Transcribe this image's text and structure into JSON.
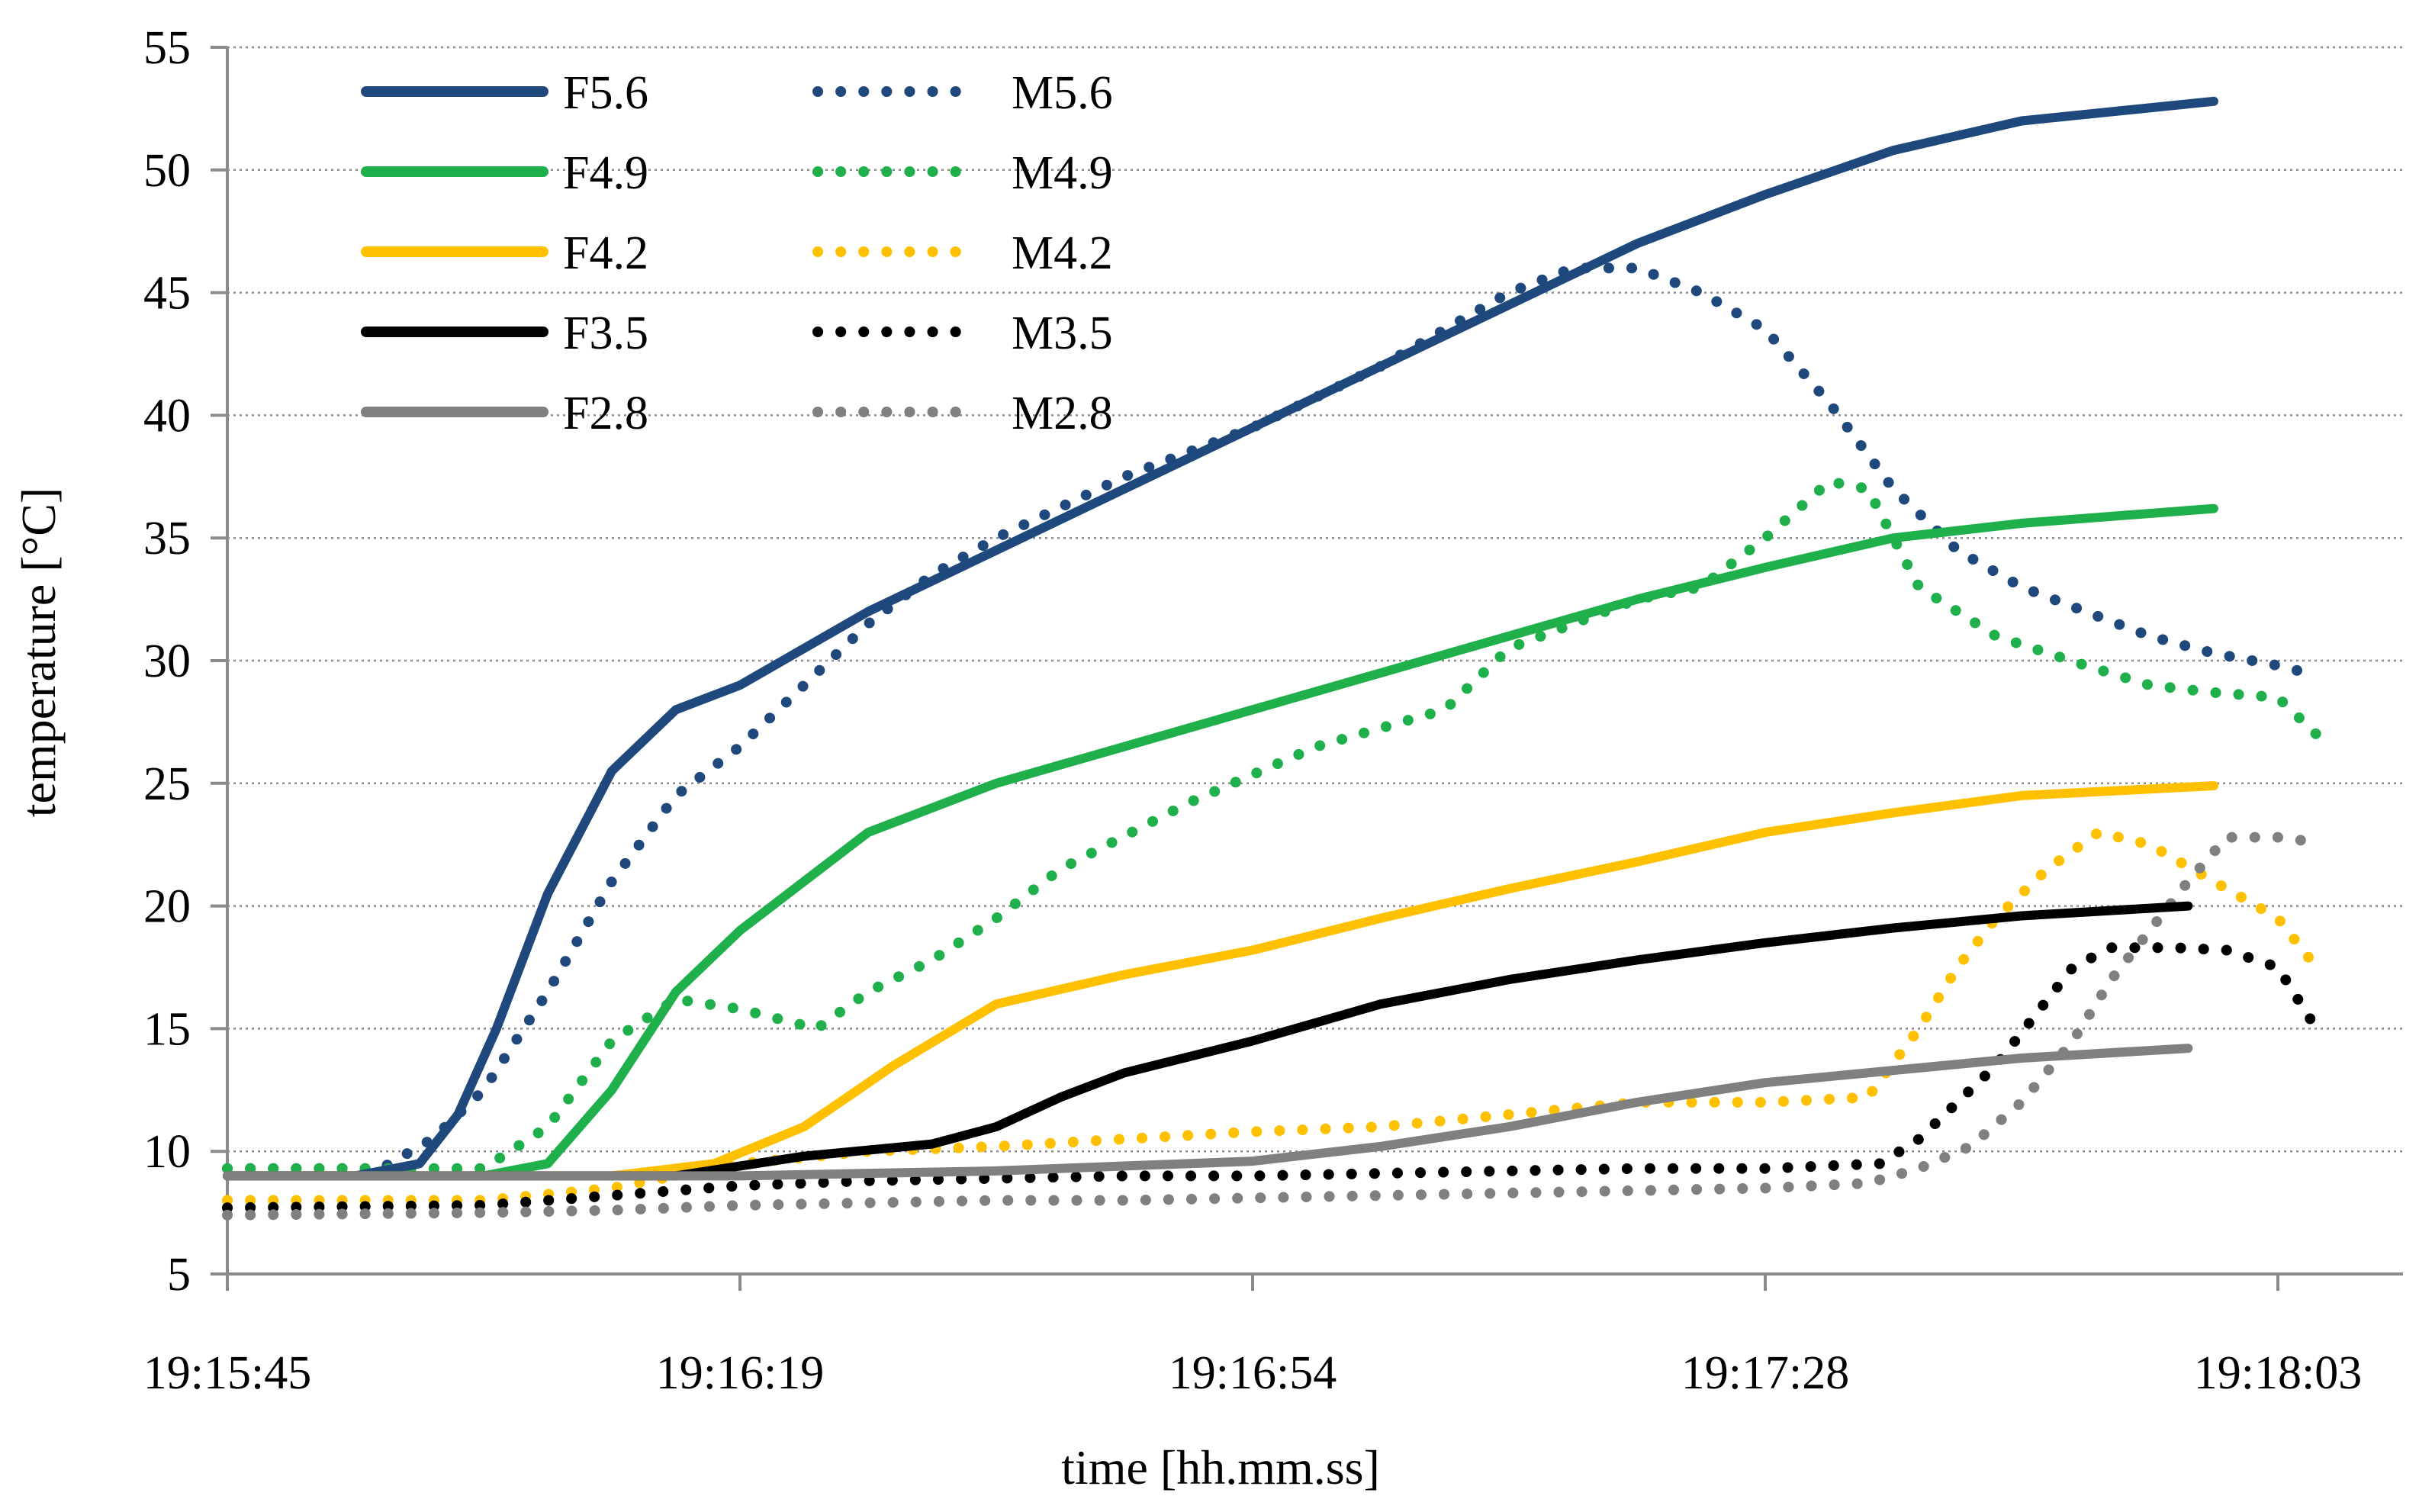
{
  "chart_data": {
    "type": "line",
    "xlabel": "time [hh.mm.ss]",
    "ylabel": "temperature [°C]",
    "ylim": [
      5,
      55
    ],
    "yticks": [
      5,
      10,
      15,
      20,
      25,
      30,
      35,
      40,
      45,
      50,
      55
    ],
    "xlim": [
      0,
      165
    ],
    "xticks": [
      {
        "label": "19:15:45",
        "t": 0
      },
      {
        "label": "19:16:19",
        "t": 40
      },
      {
        "label": "19:16:54",
        "t": 80
      },
      {
        "label": "19:17:28",
        "t": 120
      },
      {
        "label": "19:18:03",
        "t": 160
      }
    ],
    "grid": "horizontal-dotted",
    "legend_position": "top-left",
    "series": [
      {
        "name": "F5.6",
        "color": "#1f497d",
        "style": "solid",
        "points": [
          [
            0,
            9
          ],
          [
            10,
            9
          ],
          [
            15,
            9.5
          ],
          [
            18,
            11.5
          ],
          [
            21,
            15
          ],
          [
            25,
            20.5
          ],
          [
            30,
            25.5
          ],
          [
            35,
            28
          ],
          [
            40,
            29
          ],
          [
            45,
            30.5
          ],
          [
            50,
            32
          ],
          [
            60,
            34.5
          ],
          [
            70,
            37
          ],
          [
            80,
            39.5
          ],
          [
            90,
            42
          ],
          [
            100,
            44.5
          ],
          [
            110,
            47
          ],
          [
            120,
            49
          ],
          [
            130,
            50.8
          ],
          [
            140,
            52
          ],
          [
            155,
            52.8
          ]
        ]
      },
      {
        "name": "F4.9",
        "color": "#1fb04b",
        "style": "solid",
        "points": [
          [
            0,
            9
          ],
          [
            20,
            9
          ],
          [
            25,
            9.5
          ],
          [
            30,
            12.5
          ],
          [
            35,
            16.5
          ],
          [
            40,
            19
          ],
          [
            45,
            21
          ],
          [
            50,
            23
          ],
          [
            60,
            25
          ],
          [
            70,
            26.5
          ],
          [
            80,
            28
          ],
          [
            90,
            29.5
          ],
          [
            100,
            31
          ],
          [
            110,
            32.5
          ],
          [
            120,
            33.8
          ],
          [
            130,
            35
          ],
          [
            140,
            35.6
          ],
          [
            155,
            36.2
          ]
        ]
      },
      {
        "name": "F4.2",
        "color": "#ffc000",
        "style": "solid",
        "points": [
          [
            0,
            9
          ],
          [
            30,
            9
          ],
          [
            38,
            9.5
          ],
          [
            45,
            11
          ],
          [
            52,
            13.5
          ],
          [
            60,
            16
          ],
          [
            70,
            17.2
          ],
          [
            80,
            18.2
          ],
          [
            90,
            19.5
          ],
          [
            100,
            20.7
          ],
          [
            110,
            21.8
          ],
          [
            120,
            23
          ],
          [
            130,
            23.8
          ],
          [
            140,
            24.5
          ],
          [
            155,
            24.9
          ]
        ]
      },
      {
        "name": "F3.5",
        "color": "#000000",
        "style": "solid",
        "points": [
          [
            0,
            9
          ],
          [
            35,
            9
          ],
          [
            45,
            9.8
          ],
          [
            55,
            10.3
          ],
          [
            60,
            11
          ],
          [
            65,
            12.2
          ],
          [
            70,
            13.2
          ],
          [
            80,
            14.5
          ],
          [
            90,
            16
          ],
          [
            100,
            17
          ],
          [
            110,
            17.8
          ],
          [
            120,
            18.5
          ],
          [
            130,
            19.1
          ],
          [
            140,
            19.6
          ],
          [
            153,
            20
          ]
        ]
      },
      {
        "name": "F2.8",
        "color": "#808080",
        "style": "solid",
        "points": [
          [
            0,
            9
          ],
          [
            40,
            9
          ],
          [
            60,
            9.2
          ],
          [
            80,
            9.6
          ],
          [
            90,
            10.2
          ],
          [
            100,
            11
          ],
          [
            110,
            12
          ],
          [
            120,
            12.8
          ],
          [
            130,
            13.3
          ],
          [
            140,
            13.8
          ],
          [
            153,
            14.2
          ]
        ]
      },
      {
        "name": "M5.6",
        "color": "#1f497d",
        "style": "dotted",
        "points": [
          [
            0,
            9.3
          ],
          [
            12,
            9.3
          ],
          [
            16,
            10.5
          ],
          [
            20,
            12.5
          ],
          [
            25,
            16.5
          ],
          [
            30,
            21
          ],
          [
            35,
            24.5
          ],
          [
            40,
            26.5
          ],
          [
            45,
            29
          ],
          [
            50,
            31.5
          ],
          [
            55,
            33.5
          ],
          [
            60,
            35
          ],
          [
            70,
            37.5
          ],
          [
            80,
            39.5
          ],
          [
            90,
            42
          ],
          [
            100,
            45
          ],
          [
            105,
            46
          ],
          [
            110,
            46
          ],
          [
            115,
            45
          ],
          [
            120,
            43.5
          ],
          [
            125,
            40.5
          ],
          [
            130,
            37
          ],
          [
            135,
            34.5
          ],
          [
            140,
            33
          ],
          [
            145,
            32
          ],
          [
            150,
            31
          ],
          [
            155,
            30.3
          ],
          [
            160,
            29.8
          ],
          [
            163,
            29.4
          ]
        ]
      },
      {
        "name": "M4.9",
        "color": "#1fb04b",
        "style": "dotted",
        "points": [
          [
            0,
            9.3
          ],
          [
            20,
            9.3
          ],
          [
            25,
            11
          ],
          [
            30,
            14.5
          ],
          [
            35,
            16.2
          ],
          [
            40,
            15.8
          ],
          [
            46,
            15
          ],
          [
            50,
            16.5
          ],
          [
            55,
            17.8
          ],
          [
            60,
            19.5
          ],
          [
            65,
            21.5
          ],
          [
            75,
            24.2
          ],
          [
            85,
            26.5
          ],
          [
            95,
            28
          ],
          [
            100,
            30.5
          ],
          [
            110,
            32.5
          ],
          [
            115,
            33
          ],
          [
            120,
            35
          ],
          [
            125,
            37.3
          ],
          [
            128,
            37
          ],
          [
            132,
            33
          ],
          [
            138,
            31
          ],
          [
            145,
            29.8
          ],
          [
            150,
            29
          ],
          [
            155,
            28.7
          ],
          [
            160,
            28.5
          ],
          [
            163,
            27
          ]
        ]
      },
      {
        "name": "M4.2",
        "color": "#ffc000",
        "style": "dotted",
        "points": [
          [
            0,
            8
          ],
          [
            20,
            8
          ],
          [
            30,
            8.5
          ],
          [
            40,
            9.5
          ],
          [
            50,
            10
          ],
          [
            60,
            10.2
          ],
          [
            70,
            10.5
          ],
          [
            80,
            10.8
          ],
          [
            90,
            11
          ],
          [
            100,
            11.5
          ],
          [
            110,
            12
          ],
          [
            120,
            12
          ],
          [
            128,
            12.2
          ],
          [
            132,
            15
          ],
          [
            135,
            17.5
          ],
          [
            138,
            19.5
          ],
          [
            142,
            21.5
          ],
          [
            146,
            23
          ],
          [
            150,
            22.5
          ],
          [
            155,
            21
          ],
          [
            160,
            19.5
          ],
          [
            163,
            17.5
          ]
        ]
      },
      {
        "name": "M3.5",
        "color": "#000000",
        "style": "dotted",
        "points": [
          [
            0,
            7.7
          ],
          [
            20,
            7.8
          ],
          [
            30,
            8.2
          ],
          [
            40,
            8.6
          ],
          [
            50,
            8.8
          ],
          [
            60,
            8.9
          ],
          [
            70,
            9
          ],
          [
            80,
            9
          ],
          [
            90,
            9.1
          ],
          [
            100,
            9.2
          ],
          [
            110,
            9.3
          ],
          [
            120,
            9.3
          ],
          [
            129,
            9.5
          ],
          [
            132,
            10.5
          ],
          [
            135,
            12
          ],
          [
            138,
            13.5
          ],
          [
            141,
            15.5
          ],
          [
            144,
            17.5
          ],
          [
            147,
            18.3
          ],
          [
            152,
            18.3
          ],
          [
            156,
            18.2
          ],
          [
            160,
            17.5
          ],
          [
            163,
            15
          ]
        ]
      },
      {
        "name": "M2.8",
        "color": "#808080",
        "style": "dotted",
        "points": [
          [
            0,
            7.4
          ],
          [
            20,
            7.5
          ],
          [
            30,
            7.6
          ],
          [
            40,
            7.8
          ],
          [
            50,
            7.9
          ],
          [
            60,
            8
          ],
          [
            70,
            8
          ],
          [
            80,
            8.1
          ],
          [
            90,
            8.2
          ],
          [
            100,
            8.3
          ],
          [
            110,
            8.4
          ],
          [
            120,
            8.5
          ],
          [
            128,
            8.7
          ],
          [
            132,
            9.3
          ],
          [
            136,
            10.2
          ],
          [
            140,
            12
          ],
          [
            144,
            14.5
          ],
          [
            147,
            17
          ],
          [
            150,
            19
          ],
          [
            153,
            21
          ],
          [
            156,
            22.8
          ],
          [
            160,
            22.8
          ],
          [
            163,
            22.6
          ]
        ]
      }
    ]
  }
}
